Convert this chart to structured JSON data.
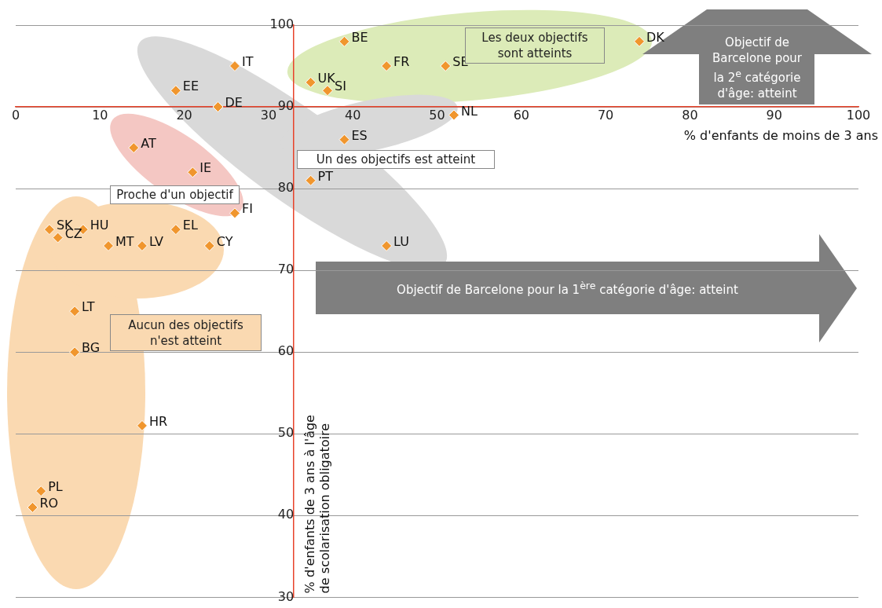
{
  "chart_data": {
    "type": "scatter",
    "xlabel": "% d'enfants de moins de 3 ans",
    "ylabel": "% d'enfants de 3 ans à l'âge de scolarisation obligatoire",
    "annotations": [
      "Objectif de Barcelone pour la 1$^{ère}$ catégorie d'âge: atteint",
      "Objectif de Barcelone pour la 2$^{e}$ catégorie d'âge: atteint",
      "Les deux objectifs sont atteints",
      "Un des objectifs est atteint",
      "Proche d'un objectif",
      "Aucun des objectifs n'est atteint"
    ],
    "xlim": [
      0,
      100
    ],
    "ylim": [
      30,
      100
    ],
    "xticks": [
      0,
      10,
      20,
      30,
      40,
      50,
      60,
      70,
      80,
      90,
      100
    ],
    "yticks": [
      30,
      40,
      50,
      60,
      70,
      80,
      90,
      100
    ],
    "grid": "y",
    "marker": "diamond",
    "series": [
      {
        "name": "BE",
        "color": "#f0962e",
        "x": [
          39
        ],
        "values": [
          98
        ]
      },
      {
        "name": "IT",
        "color": "#f0962e",
        "x": [
          26
        ],
        "values": [
          95
        ]
      },
      {
        "name": "EE",
        "color": "#f0962e",
        "x": [
          19
        ],
        "values": [
          92
        ]
      },
      {
        "name": "DE",
        "color": "#f0962e",
        "x": [
          24
        ],
        "values": [
          90
        ]
      },
      {
        "name": "UK",
        "color": "#f0962e",
        "x": [
          35
        ],
        "values": [
          93
        ]
      },
      {
        "name": "SI",
        "color": "#f0962e",
        "x": [
          37
        ],
        "values": [
          92
        ]
      },
      {
        "name": "FR",
        "color": "#f0962e",
        "x": [
          44
        ],
        "values": [
          95
        ]
      },
      {
        "name": "SE",
        "color": "#f0962e",
        "x": [
          51
        ],
        "values": [
          95
        ]
      },
      {
        "name": "DK",
        "color": "#f0962e",
        "x": [
          74
        ],
        "values": [
          98
        ]
      },
      {
        "name": "NL",
        "color": "#f0962e",
        "x": [
          52
        ],
        "values": [
          89
        ]
      },
      {
        "name": "ES",
        "color": "#f0962e",
        "x": [
          39
        ],
        "values": [
          86
        ]
      },
      {
        "name": "AT",
        "color": "#f0962e",
        "x": [
          14
        ],
        "values": [
          85
        ]
      },
      {
        "name": "IE",
        "color": "#f0962e",
        "x": [
          21
        ],
        "values": [
          82
        ]
      },
      {
        "name": "PT",
        "color": "#f0962e",
        "x": [
          35
        ],
        "values": [
          81
        ]
      },
      {
        "name": "FI",
        "color": "#f0962e",
        "x": [
          26
        ],
        "values": [
          77
        ]
      },
      {
        "name": "SK",
        "color": "#f0962e",
        "x": [
          4
        ],
        "values": [
          75
        ]
      },
      {
        "name": "CZ",
        "color": "#f0962e",
        "x": [
          5
        ],
        "values": [
          74
        ]
      },
      {
        "name": "HU",
        "color": "#f0962e",
        "x": [
          8
        ],
        "values": [
          75
        ]
      },
      {
        "name": "MT",
        "color": "#f0962e",
        "x": [
          11
        ],
        "values": [
          73
        ]
      },
      {
        "name": "LV",
        "color": "#f0962e",
        "x": [
          15
        ],
        "values": [
          73
        ]
      },
      {
        "name": "EL",
        "color": "#f0962e",
        "x": [
          19
        ],
        "values": [
          75
        ]
      },
      {
        "name": "CY",
        "color": "#f0962e",
        "x": [
          23
        ],
        "values": [
          73
        ]
      },
      {
        "name": "LU",
        "color": "#f0962e",
        "x": [
          44
        ],
        "values": [
          73
        ]
      },
      {
        "name": "LT",
        "color": "#f0962e",
        "x": [
          7
        ],
        "values": [
          65
        ]
      },
      {
        "name": "BG",
        "color": "#f0962e",
        "x": [
          7
        ],
        "values": [
          60
        ]
      },
      {
        "name": "HR",
        "color": "#f0962e",
        "x": [
          15
        ],
        "values": [
          51
        ]
      },
      {
        "name": "PL",
        "color": "#f0962e",
        "x": [
          3
        ],
        "values": [
          43
        ]
      },
      {
        "name": "RO",
        "color": "#f0962e",
        "x": [
          2
        ],
        "values": [
          41
        ]
      }
    ]
  }
}
